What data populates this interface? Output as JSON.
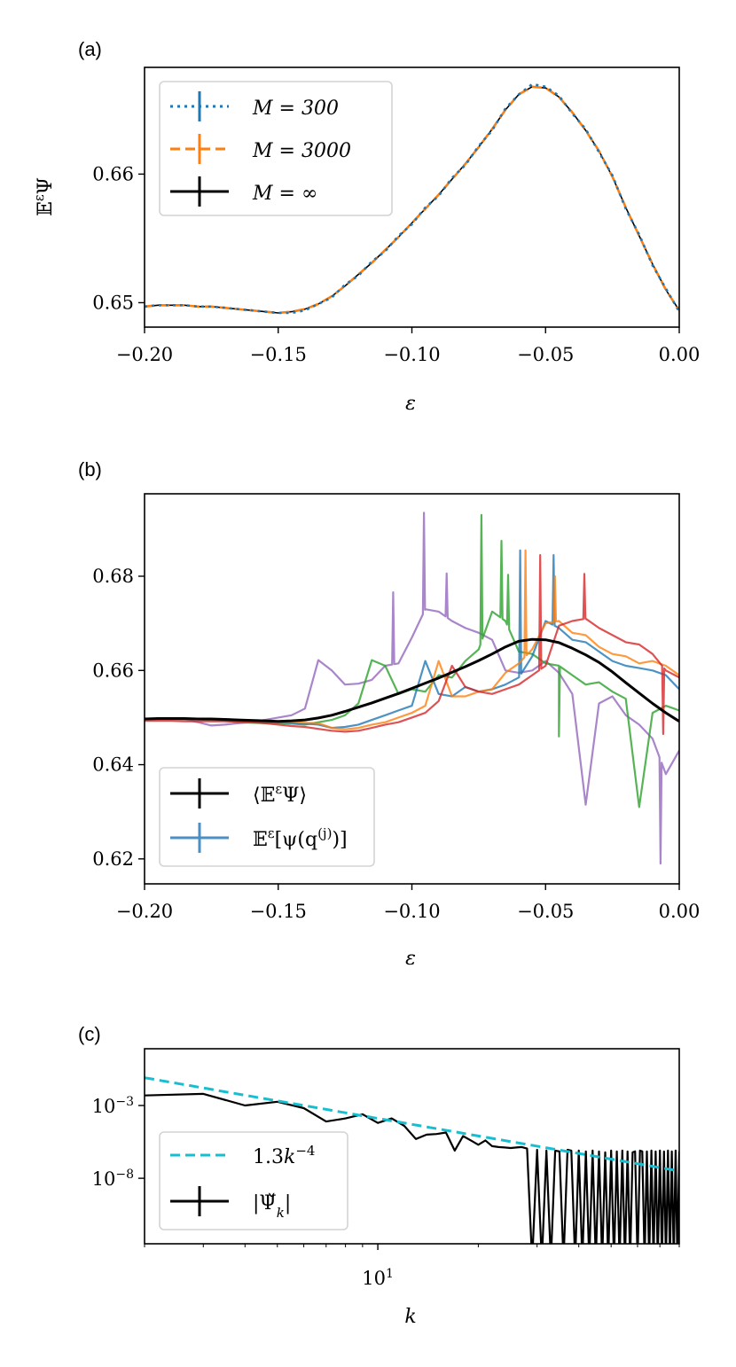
{
  "chart_data": [
    {
      "panel": "(a)",
      "type": "line",
      "xlabel": "ε",
      "ylabel": [
        {
          "t": "𝔼"
        },
        {
          "t": "ε",
          "sup": true
        },
        {
          "t": "Ψ"
        }
      ],
      "xlim": [
        -0.2,
        0.0
      ],
      "ylim": [
        0.6481,
        0.6683
      ],
      "xticks": [
        {
          "v": -0.2,
          "label": "−0.20"
        },
        {
          "v": -0.15,
          "label": "−0.15"
        },
        {
          "v": -0.1,
          "label": "−0.10"
        },
        {
          "v": -0.05,
          "label": "−0.05"
        },
        {
          "v": 0.0,
          "label": "0.00"
        }
      ],
      "yticks": [
        {
          "v": 0.65,
          "label": "0.65"
        },
        {
          "v": 0.66,
          "label": "0.66"
        }
      ],
      "legend_position": "upper-left",
      "x": [
        -0.2,
        -0.195,
        -0.19,
        -0.185,
        -0.18,
        -0.175,
        -0.17,
        -0.165,
        -0.16,
        -0.155,
        -0.15,
        -0.145,
        -0.14,
        -0.135,
        -0.13,
        -0.125,
        -0.12,
        -0.115,
        -0.11,
        -0.105,
        -0.1,
        -0.095,
        -0.09,
        -0.085,
        -0.08,
        -0.075,
        -0.07,
        -0.065,
        -0.06,
        -0.055,
        -0.05,
        -0.045,
        -0.04,
        -0.035,
        -0.03,
        -0.025,
        -0.02,
        -0.015,
        -0.01,
        -0.005,
        0.0
      ],
      "series": [
        {
          "name": "M = 300",
          "label": [
            {
              "t": "M = 300",
              "it": true
            }
          ],
          "color": "#1f77b4",
          "style": "dotted",
          "values": [
            0.6497,
            0.6498,
            0.6498,
            0.6498,
            0.6497,
            0.6497,
            0.6496,
            0.6495,
            0.6494,
            0.6493,
            0.6492,
            0.6492,
            0.6494,
            0.6499,
            0.6504,
            0.6514,
            0.6521,
            0.6532,
            0.654,
            0.6552,
            0.6561,
            0.6574,
            0.6583,
            0.6597,
            0.6607,
            0.6622,
            0.6634,
            0.6651,
            0.6662,
            0.667,
            0.6668,
            0.6661,
            0.6647,
            0.6635,
            0.6617,
            0.6599,
            0.6573,
            0.6553,
            0.6529,
            0.6511,
            0.6493
          ]
        },
        {
          "name": "M = 3000",
          "label": [
            {
              "t": "M = 3000",
              "it": true
            }
          ],
          "color": "#ff7f0e",
          "style": "dashed",
          "values": [
            0.6497,
            0.6498,
            0.6498,
            0.6498,
            0.6497,
            0.6497,
            0.6496,
            0.6495,
            0.6494,
            0.6493,
            0.6492,
            0.6493,
            0.6495,
            0.6499,
            0.6505,
            0.6513,
            0.6522,
            0.6531,
            0.6541,
            0.6551,
            0.6562,
            0.6573,
            0.6584,
            0.6596,
            0.6608,
            0.6621,
            0.6635,
            0.665,
            0.6662,
            0.6668,
            0.6667,
            0.666,
            0.6648,
            0.6634,
            0.6618,
            0.6598,
            0.6574,
            0.6552,
            0.653,
            0.651,
            0.6494
          ]
        },
        {
          "name": "M = ∞",
          "label": [
            {
              "t": "M = ∞",
              "it": true
            }
          ],
          "color": "#000000",
          "style": "solid",
          "values": [
            0.6497,
            0.6498,
            0.6498,
            0.6498,
            0.6497,
            0.6497,
            0.6496,
            0.6495,
            0.6494,
            0.6493,
            0.6492,
            0.6493,
            0.6495,
            0.6499,
            0.6505,
            0.6513,
            0.6522,
            0.6531,
            0.6541,
            0.6551,
            0.6562,
            0.6573,
            0.6584,
            0.6596,
            0.6608,
            0.6621,
            0.6635,
            0.665,
            0.6662,
            0.6668,
            0.6667,
            0.666,
            0.6648,
            0.6634,
            0.6618,
            0.6598,
            0.6574,
            0.6552,
            0.653,
            0.651,
            0.6494
          ]
        }
      ]
    },
    {
      "panel": "(b)",
      "type": "line",
      "xlabel": "ε",
      "xlim": [
        -0.2,
        0.0
      ],
      "ylim": [
        0.6147,
        0.6975
      ],
      "xticks": [
        {
          "v": -0.2,
          "label": "−0.20"
        },
        {
          "v": -0.15,
          "label": "−0.15"
        },
        {
          "v": -0.1,
          "label": "−0.10"
        },
        {
          "v": -0.05,
          "label": "−0.05"
        },
        {
          "v": 0.0,
          "label": "0.00"
        }
      ],
      "yticks": [
        {
          "v": 0.62,
          "label": "0.62"
        },
        {
          "v": 0.64,
          "label": "0.64"
        },
        {
          "v": 0.66,
          "label": "0.66"
        },
        {
          "v": 0.68,
          "label": "0.68"
        }
      ],
      "legend_position": "lower-left",
      "legend": [
        {
          "label": [
            {
              "t": "⟨𝔼"
            },
            {
              "t": "ε",
              "sup": true
            },
            {
              "t": "Ψ⟩"
            }
          ],
          "color": "#000000"
        },
        {
          "label": [
            {
              "t": "𝔼"
            },
            {
              "t": "ε",
              "sup": true
            },
            {
              "t": "[ψ(q"
            },
            {
              "t": "(j)",
              "sup": true
            },
            {
              "t": ")]"
            }
          ],
          "color": "#4a90c4"
        }
      ],
      "x": [
        -0.2,
        -0.195,
        -0.19,
        -0.185,
        -0.18,
        -0.175,
        -0.17,
        -0.165,
        -0.16,
        -0.155,
        -0.15,
        -0.145,
        -0.14,
        -0.135,
        -0.13,
        -0.125,
        -0.12,
        -0.115,
        -0.11,
        -0.105,
        -0.1,
        -0.095,
        -0.09,
        -0.085,
        -0.08,
        -0.075,
        -0.07,
        -0.065,
        -0.06,
        -0.055,
        -0.05,
        -0.045,
        -0.04,
        -0.035,
        -0.03,
        -0.025,
        -0.02,
        -0.015,
        -0.01,
        -0.005,
        0.0
      ],
      "series": [
        {
          "name": "sample-purple",
          "color": "#9467bd",
          "values": [
            0.6497,
            0.6497,
            0.6497,
            0.6496,
            0.649,
            0.6483,
            0.6485,
            0.6488,
            0.649,
            0.6495,
            0.65,
            0.6505,
            0.6519,
            0.6622,
            0.66,
            0.657,
            0.6572,
            0.658,
            0.661,
            0.6615,
            0.667,
            0.673,
            0.6725,
            0.6705,
            0.669,
            0.668,
            0.6665,
            0.66,
            0.6595,
            0.66,
            0.662,
            0.6595,
            0.655,
            0.6315,
            0.653,
            0.6545,
            0.6505,
            0.6485,
            0.6455,
            0.638,
            0.643
          ],
          "spikes": [
            [
              -0.107,
              0.6766
            ],
            [
              -0.0955,
              0.6935
            ],
            [
              -0.087,
              0.6806
            ],
            [
              -0.007,
              0.619
            ]
          ]
        },
        {
          "name": "sample-green",
          "color": "#2ca02c",
          "values": [
            0.6497,
            0.6497,
            0.6497,
            0.6497,
            0.6496,
            0.6495,
            0.6493,
            0.649,
            0.6489,
            0.6488,
            0.6488,
            0.6487,
            0.6485,
            0.649,
            0.6495,
            0.6505,
            0.653,
            0.6622,
            0.661,
            0.655,
            0.656,
            0.6555,
            0.659,
            0.6585,
            0.662,
            0.6645,
            0.6725,
            0.6705,
            0.664,
            0.6635,
            0.6615,
            0.661,
            0.659,
            0.657,
            0.6575,
            0.6555,
            0.654,
            0.631,
            0.651,
            0.6525,
            0.6515
          ],
          "spikes": [
            [
              -0.074,
              0.693
            ],
            [
              -0.0665,
              0.6875
            ],
            [
              -0.064,
              0.6803
            ],
            [
              -0.045,
              0.646
            ]
          ]
        },
        {
          "name": "sample-blue",
          "color": "#1f77b4",
          "values": [
            0.6497,
            0.6497,
            0.6497,
            0.6497,
            0.6497,
            0.6496,
            0.6495,
            0.6494,
            0.6493,
            0.6491,
            0.649,
            0.6488,
            0.6487,
            0.6485,
            0.6478,
            0.648,
            0.6485,
            0.6495,
            0.6505,
            0.6515,
            0.6525,
            0.662,
            0.655,
            0.6545,
            0.6565,
            0.6555,
            0.656,
            0.657,
            0.6585,
            0.663,
            0.6705,
            0.669,
            0.6665,
            0.666,
            0.664,
            0.662,
            0.661,
            0.6605,
            0.66,
            0.659,
            0.656
          ],
          "spikes": [
            [
              -0.0595,
              0.6855
            ],
            [
              -0.047,
              0.6845
            ]
          ]
        },
        {
          "name": "sample-orange",
          "color": "#ff7f0e",
          "values": [
            0.6497,
            0.6497,
            0.6497,
            0.6497,
            0.6497,
            0.6496,
            0.6495,
            0.6494,
            0.6493,
            0.6492,
            0.6491,
            0.649,
            0.6489,
            0.6488,
            0.6478,
            0.6475,
            0.6478,
            0.6485,
            0.649,
            0.65,
            0.651,
            0.6525,
            0.662,
            0.6545,
            0.6545,
            0.6555,
            0.656,
            0.6595,
            0.6615,
            0.6645,
            0.67,
            0.6705,
            0.668,
            0.6675,
            0.665,
            0.6635,
            0.663,
            0.6615,
            0.662,
            0.661,
            0.659
          ],
          "spikes": [
            [
              -0.0575,
              0.6855
            ],
            [
              -0.0465,
              0.68
            ]
          ]
        },
        {
          "name": "sample-red",
          "color": "#d62728",
          "values": [
            0.6493,
            0.6493,
            0.6493,
            0.6492,
            0.6492,
            0.6492,
            0.6492,
            0.6491,
            0.649,
            0.6488,
            0.6485,
            0.6482,
            0.648,
            0.6476,
            0.6472,
            0.647,
            0.6472,
            0.6478,
            0.6485,
            0.649,
            0.65,
            0.651,
            0.6535,
            0.661,
            0.6565,
            0.6555,
            0.655,
            0.656,
            0.657,
            0.659,
            0.661,
            0.6695,
            0.6705,
            0.671,
            0.669,
            0.6675,
            0.666,
            0.6655,
            0.6635,
            0.66,
            0.6585
          ],
          "spikes": [
            [
              -0.052,
              0.6845
            ],
            [
              -0.0355,
              0.6805
            ],
            [
              -0.006,
              0.6465
            ]
          ]
        },
        {
          "name": "mean",
          "color": "#000000",
          "values": [
            0.6497,
            0.6498,
            0.6498,
            0.6498,
            0.6497,
            0.6497,
            0.6496,
            0.6495,
            0.6494,
            0.6493,
            0.6492,
            0.6493,
            0.6495,
            0.6499,
            0.6505,
            0.6513,
            0.6522,
            0.6531,
            0.6541,
            0.6551,
            0.6562,
            0.6573,
            0.6584,
            0.6596,
            0.6608,
            0.6621,
            0.6635,
            0.665,
            0.6662,
            0.6666,
            0.6665,
            0.6659,
            0.6647,
            0.6633,
            0.6617,
            0.6597,
            0.6574,
            0.6552,
            0.653,
            0.651,
            0.6492
          ]
        }
      ]
    },
    {
      "panel": "(c)",
      "type": "line",
      "xlabel": "k",
      "xscale": "log",
      "yscale": "log",
      "xlim": [
        2,
        80
      ],
      "ylim_log10": [
        -12.5,
        0.9
      ],
      "xticks": [
        {
          "v": 10,
          "base": "10",
          "exp": "1"
        }
      ],
      "yticks": [
        {
          "v": -3,
          "base": "10",
          "exp": "−3"
        },
        {
          "v": -8,
          "base": "10",
          "exp": "−8"
        }
      ],
      "legend_position": "lower-left",
      "legend": [
        {
          "label": [
            {
              "t": "1.3"
            },
            {
              "t": "k",
              "it": true
            },
            {
              "t": "−4",
              "sup": true
            }
          ],
          "color": "#17becf",
          "style": "dashed"
        },
        {
          "label": [
            {
              "t": "|Ψ̌"
            },
            {
              "t": "k",
              "sub": true
            },
            {
              "t": "|"
            }
          ],
          "color": "#000000",
          "style": "solid"
        }
      ],
      "fit": {
        "coef": 1.3,
        "power": -4
      },
      "k": [
        2,
        3,
        4,
        5,
        6,
        7,
        8,
        9,
        10,
        11,
        12,
        13,
        14,
        15,
        16,
        17,
        18,
        19,
        20,
        21,
        22,
        23,
        24,
        25,
        26,
        27,
        28,
        29,
        30,
        31,
        32,
        33,
        34,
        35,
        36,
        37,
        38,
        39,
        40,
        41,
        42,
        43,
        44,
        45,
        46,
        47,
        48,
        49,
        50,
        51,
        52,
        53,
        54,
        55,
        56,
        57,
        58,
        59,
        60,
        61,
        62,
        63,
        64,
        65,
        66,
        67,
        68,
        69,
        70,
        71,
        72,
        73,
        74,
        75,
        76,
        77,
        78,
        79,
        80
      ],
      "values": [
        0.0049,
        0.0063,
        0.001,
        0.0018,
        0.00066,
        7.9e-05,
        0.00013,
        0.00025,
        6.3e-05,
        0.00013,
        4e-05,
        5e-06,
        1e-05,
        1.1e-05,
        1.4e-05,
        8e-07,
        8e-06,
        4e-06,
        2e-06,
        4e-06,
        1.6e-06,
        1.4e-06,
        1.3e-06,
        1.2e-06,
        1.3e-06,
        1.4e-06,
        1.1e-06,
        0,
        9e-07,
        0,
        8e-07,
        0,
        8e-07,
        7e-07,
        0,
        9e-07,
        8e-07,
        0,
        8e-07,
        0,
        7e-07,
        0,
        8e-07,
        0,
        7e-07,
        0,
        6e-07,
        0,
        8e-07,
        0,
        7e-07,
        0,
        8e-07,
        0,
        7e-07,
        0,
        6e-07,
        7e-07,
        0,
        8e-07,
        7e-07,
        0,
        7e-07,
        0,
        8e-07,
        0,
        7e-07,
        0,
        8e-07,
        0,
        7e-07,
        0,
        8e-07,
        0,
        7e-07,
        0,
        8e-07,
        0,
        7e-07
      ]
    }
  ]
}
